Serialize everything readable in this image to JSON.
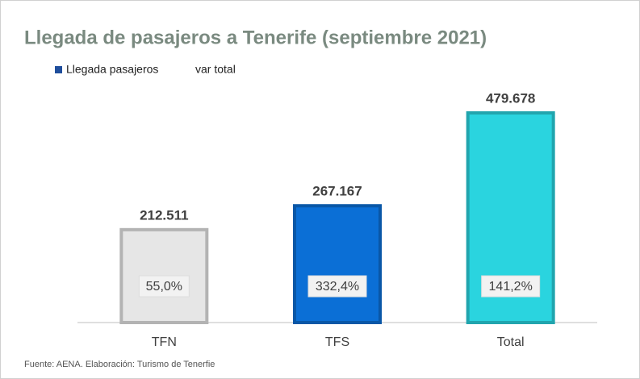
{
  "chart_data": {
    "type": "bar",
    "title": "Llegada de pasajeros a Tenerife (septiembre 2021)",
    "categories": [
      "TFN",
      "TFS",
      "Total"
    ],
    "series": [
      {
        "name": "Llegada pasajeros",
        "color": "#1f4e9c",
        "colors": [
          "#e6e6e6",
          "#0b6fd6",
          "#2ad4df"
        ],
        "values": [
          212511,
          267167,
          479678
        ],
        "value_labels": [
          "212.511",
          "267.167",
          "479.678"
        ]
      },
      {
        "name": "var total",
        "values": [
          55.0,
          332.4,
          141.2
        ],
        "value_labels": [
          "55,0%",
          "332,4%",
          "141,2%"
        ]
      }
    ],
    "ylim": [
      0,
      500000
    ],
    "source": "Fuente: AENA. Elaboración: Turismo de Tenerfie"
  }
}
